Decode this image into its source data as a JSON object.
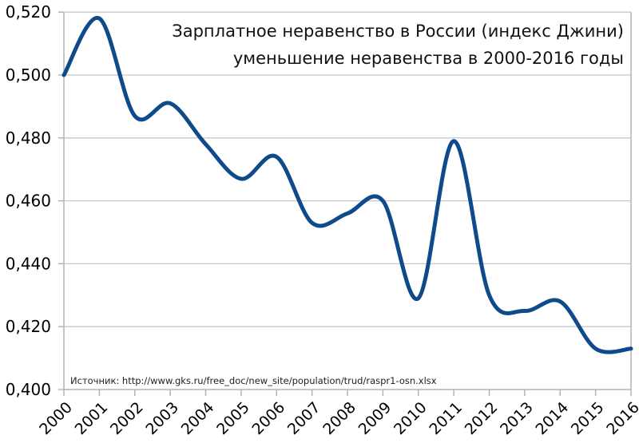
{
  "chart_data": {
    "type": "line",
    "title": "Зарплатное неравенство в России (индекс Джини)",
    "subtitle": "уменьшение неравенства в 2000-2016 годы",
    "xlabel": "",
    "ylabel": "",
    "source": "Источник: http://www.gks.ru/free_doc/new_site/population/trud/raspr1-osn.xlsx",
    "categories": [
      "2000",
      "2001",
      "2002",
      "2003",
      "2004",
      "2005",
      "2006",
      "2007",
      "2008",
      "2009",
      "2010",
      "2011",
      "2012",
      "2013",
      "2014",
      "2015",
      "2016"
    ],
    "series": [
      {
        "name": "Индекс Джини",
        "color": "#0f4a8a",
        "values": [
          0.5,
          0.518,
          0.487,
          0.491,
          0.478,
          0.467,
          0.474,
          0.453,
          0.456,
          0.46,
          0.429,
          0.479,
          0.43,
          0.425,
          0.428,
          0.413,
          0.413
        ]
      }
    ],
    "ylim": [
      0.4,
      0.52
    ],
    "yticks": [
      "0,520",
      "0,500",
      "0,480",
      "0,460",
      "0,440",
      "0,420",
      "0,400"
    ],
    "ytick_values": [
      0.52,
      0.5,
      0.48,
      0.46,
      0.44,
      0.42,
      0.4
    ],
    "grid": true,
    "smooth": true,
    "legend": "none"
  }
}
